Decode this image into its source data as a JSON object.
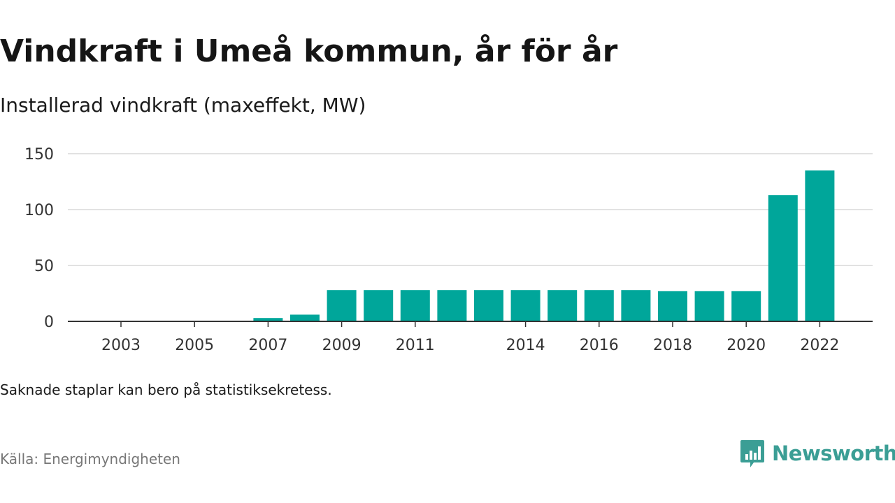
{
  "title": "Vindkraft i Umeå kommun, år för år",
  "subtitle": "Installerad vindkraft (maxeffekt, MW)",
  "note": "Saknade staplar kan bero på statistiksekretess.",
  "source": "Källa: Energimyndigheten",
  "brand": {
    "name": "Newsworthy",
    "icon": "newsworthy-logo-icon",
    "color": "#3b9e95"
  },
  "chart_data": {
    "type": "bar",
    "categories": [
      "2003",
      "2004",
      "2005",
      "2006",
      "2007",
      "2008",
      "2009",
      "2010",
      "2011",
      "2012",
      "2013",
      "2014",
      "2015",
      "2016",
      "2017",
      "2018",
      "2019",
      "2020",
      "2021",
      "2022"
    ],
    "values": [
      null,
      null,
      null,
      null,
      3,
      6,
      28,
      28,
      28,
      28,
      28,
      28,
      28,
      28,
      28,
      27,
      27,
      27,
      113,
      135
    ],
    "xticks": [
      "2003",
      "2005",
      "2007",
      "2009",
      "2011",
      "2014",
      "2016",
      "2018",
      "2020",
      "2022"
    ],
    "yticks": [
      0,
      50,
      100,
      150
    ],
    "ylim": [
      0,
      150
    ],
    "bar_color": "#00a69a",
    "grid": true
  }
}
